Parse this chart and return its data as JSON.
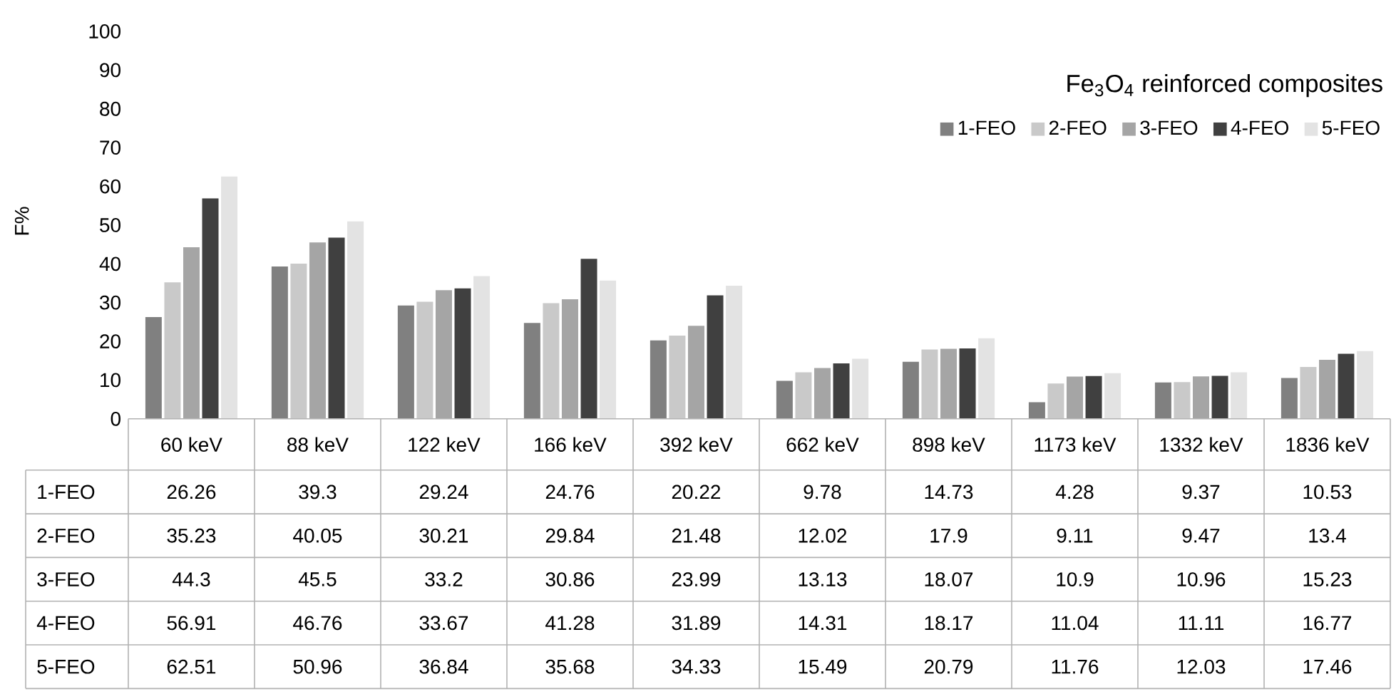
{
  "chart_data": {
    "type": "bar",
    "legend_title": "Fe$_{3}$O$_{4}$ reinforced composites",
    "ylabel": "F%",
    "categories": [
      "60 keV",
      "88 keV",
      "122 keV",
      "166 keV",
      "392 keV",
      "662 keV",
      "898 keV",
      "1173 keV",
      "1332 keV",
      "1836 keV"
    ],
    "series": [
      {
        "name": "1-FEO",
        "color": "#808080",
        "values": [
          26.26,
          39.3,
          29.24,
          24.76,
          20.22,
          9.78,
          14.73,
          4.28,
          9.37,
          10.53
        ]
      },
      {
        "name": "2-FEO",
        "color": "#c9c9c9",
        "values": [
          35.23,
          40.05,
          30.21,
          29.84,
          21.48,
          12.02,
          17.9,
          9.11,
          9.47,
          13.4
        ]
      },
      {
        "name": "3-FEO",
        "color": "#a5a5a5",
        "values": [
          44.3,
          45.5,
          33.2,
          30.86,
          23.99,
          13.13,
          18.07,
          10.9,
          10.96,
          15.23
        ]
      },
      {
        "name": "4-FEO",
        "color": "#404040",
        "values": [
          56.91,
          46.76,
          33.67,
          41.28,
          31.89,
          14.31,
          18.17,
          11.04,
          11.11,
          16.77
        ]
      },
      {
        "name": "5-FEO",
        "color": "#e3e3e3",
        "values": [
          62.51,
          50.96,
          36.84,
          35.68,
          34.33,
          15.49,
          20.79,
          11.76,
          12.03,
          17.46
        ]
      }
    ],
    "ylim": [
      0,
      100
    ],
    "yticks": [
      0,
      10,
      20,
      30,
      40,
      50,
      60,
      70,
      80,
      90,
      100
    ],
    "legend": "top right",
    "data_labels": true,
    "grid": false
  }
}
